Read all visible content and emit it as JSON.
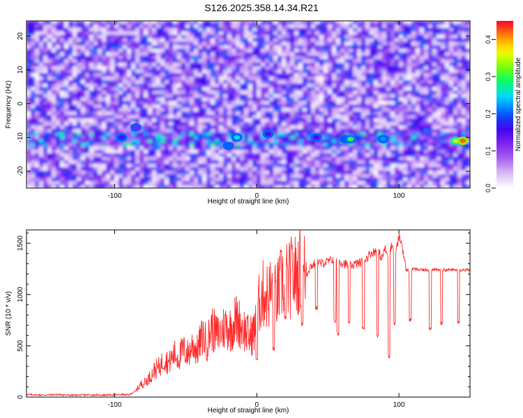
{
  "figure": {
    "title": "S126.2025.358.14.34.R21"
  },
  "colors": {
    "colormap": [
      "#ffffff",
      "#d9b8f5",
      "#a35cf0",
      "#7a1ff0",
      "#3a00f0",
      "#0066ff",
      "#00d7ff",
      "#00ff66",
      "#7dff00",
      "#ffff00",
      "#ff8800",
      "#ff0033"
    ],
    "snr_line": "#ff2a2a"
  },
  "chart_data": [
    {
      "type": "heatmap",
      "xlabel": "Height of straight line (km)",
      "ylabel": "Frequency (Hz)",
      "xlim": [
        -162,
        150
      ],
      "ylim": [
        -25,
        24.5
      ],
      "x_ticks": [
        "-100",
        "0",
        "100"
      ],
      "x_tick_values": [
        -100,
        0,
        100
      ],
      "y_ticks": [
        "20",
        "10",
        "0",
        "-10",
        "-20"
      ],
      "y_tick_values": [
        20,
        10,
        0,
        -10,
        -20
      ],
      "colorbar": {
        "label": "Normalized spectral amplitude",
        "range": [
          0.0,
          0.45
        ],
        "ticks": [
          "0.0",
          "0.1",
          "0.2",
          "0.3",
          "0.4"
        ],
        "tick_values": [
          0.0,
          0.1,
          0.2,
          0.3,
          0.4
        ]
      },
      "signal_band": {
        "frequency_hz": -10.5,
        "note_points": [
          {
            "x": -95,
            "y": -10,
            "v": 0.15
          },
          {
            "x": -85,
            "y": -7,
            "v": 0.12
          },
          {
            "x": -20,
            "y": -12.5,
            "v": 0.2
          },
          {
            "x": -14,
            "y": -10,
            "v": 0.25
          },
          {
            "x": 8,
            "y": -9,
            "v": 0.15
          },
          {
            "x": 42,
            "y": -10,
            "v": 0.15
          },
          {
            "x": 62,
            "y": -10.5,
            "v": 0.2
          },
          {
            "x": 66,
            "y": -10.5,
            "v": 0.3
          },
          {
            "x": 89,
            "y": -10.5,
            "v": 0.22
          },
          {
            "x": 140,
            "y": -11,
            "v": 0.35
          },
          {
            "x": 145,
            "y": -11,
            "v": 0.42
          }
        ]
      }
    },
    {
      "type": "line",
      "xlabel": "Height of straight line (km)",
      "ylabel": "SNR (10 * v/v)",
      "xlim": [
        -162,
        150
      ],
      "ylim": [
        0,
        1630
      ],
      "x_ticks": [
        "-100",
        "0",
        "100"
      ],
      "x_tick_values": [
        -100,
        0,
        100
      ],
      "y_ticks": [
        "0",
        "500",
        "1000",
        "1500"
      ],
      "y_tick_values": [
        0,
        500,
        1000,
        1500
      ],
      "series": [
        {
          "x": [
            -162,
            -150,
            -140,
            -130,
            -120,
            -110,
            -100,
            -95,
            -90,
            -85,
            -82,
            -78,
            -75,
            -72,
            -68,
            -65,
            -62,
            -58,
            -55,
            -52,
            -48,
            -45,
            -42,
            -38,
            -35,
            -32,
            -28,
            -25,
            -22,
            -18,
            -15,
            -12,
            -8,
            -5,
            -2,
            0,
            2,
            5,
            8,
            10,
            12,
            15,
            18,
            20,
            22,
            25,
            28,
            30,
            32,
            35,
            38,
            40,
            42,
            45,
            50,
            55,
            60,
            65,
            70,
            75,
            80,
            85,
            88,
            90,
            92,
            95,
            98,
            100,
            102,
            105,
            108,
            110,
            115,
            120,
            125,
            130,
            135,
            140,
            145,
            150
          ],
          "y": [
            25,
            20,
            25,
            18,
            22,
            20,
            22,
            25,
            20,
            60,
            120,
            150,
            200,
            260,
            300,
            380,
            330,
            420,
            380,
            460,
            420,
            520,
            450,
            600,
            520,
            680,
            600,
            640,
            700,
            660,
            760,
            720,
            640,
            580,
            640,
            720,
            950,
            1010,
            980,
            1040,
            950,
            1020,
            1130,
            1150,
            1100,
            1200,
            1180,
            1230,
            1250,
            1200,
            1280,
            1290,
            1330,
            1300,
            1320,
            1350,
            1310,
            1280,
            1300,
            1320,
            1400,
            1430,
            1350,
            1450,
            1380,
            1480,
            1420,
            1560,
            1500,
            1240,
            1230,
            1250,
            1240,
            1240,
            1240,
            1240,
            1240,
            1240,
            1240,
            1240
          ],
          "dips": [
            {
              "x": 0,
              "y": 350
            },
            {
              "x": 12,
              "y": 450
            },
            {
              "x": 20,
              "y": 750
            },
            {
              "x": 32,
              "y": 690
            },
            {
              "x": 42,
              "y": 850
            },
            {
              "x": 55,
              "y": 720
            },
            {
              "x": 57,
              "y": 600
            },
            {
              "x": 65,
              "y": 690
            },
            {
              "x": 75,
              "y": 650
            },
            {
              "x": 85,
              "y": 580
            },
            {
              "x": 93,
              "y": 380
            },
            {
              "x": 97,
              "y": 700
            },
            {
              "x": 108,
              "y": 730
            },
            {
              "x": 122,
              "y": 650
            },
            {
              "x": 130,
              "y": 700
            },
            {
              "x": 142,
              "y": 720
            }
          ]
        }
      ]
    }
  ]
}
